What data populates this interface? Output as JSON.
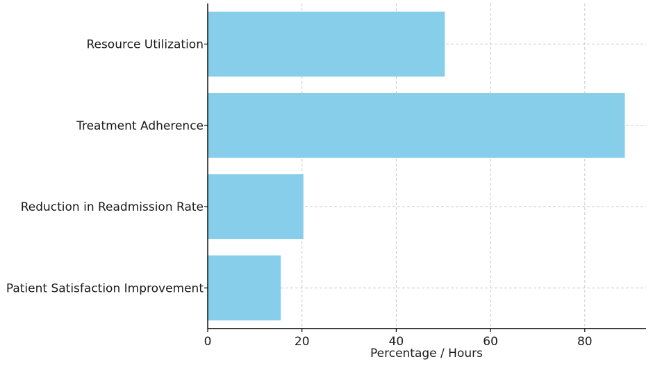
{
  "chart_data": {
    "type": "bar",
    "orientation": "horizontal",
    "categories": [
      "Patient Satisfaction Improvement",
      "Reduction in Readmission Rate",
      "Treatment Adherence",
      "Resource Utilization"
    ],
    "values": [
      15.5,
      20.3,
      88.5,
      50.3
    ],
    "xlabel": "Percentage / Hours",
    "xlim": [
      0,
      93
    ],
    "xticks": [
      0,
      20,
      40,
      60,
      80
    ],
    "grid": true,
    "colors": {
      "bar": "#87CEEB"
    }
  }
}
